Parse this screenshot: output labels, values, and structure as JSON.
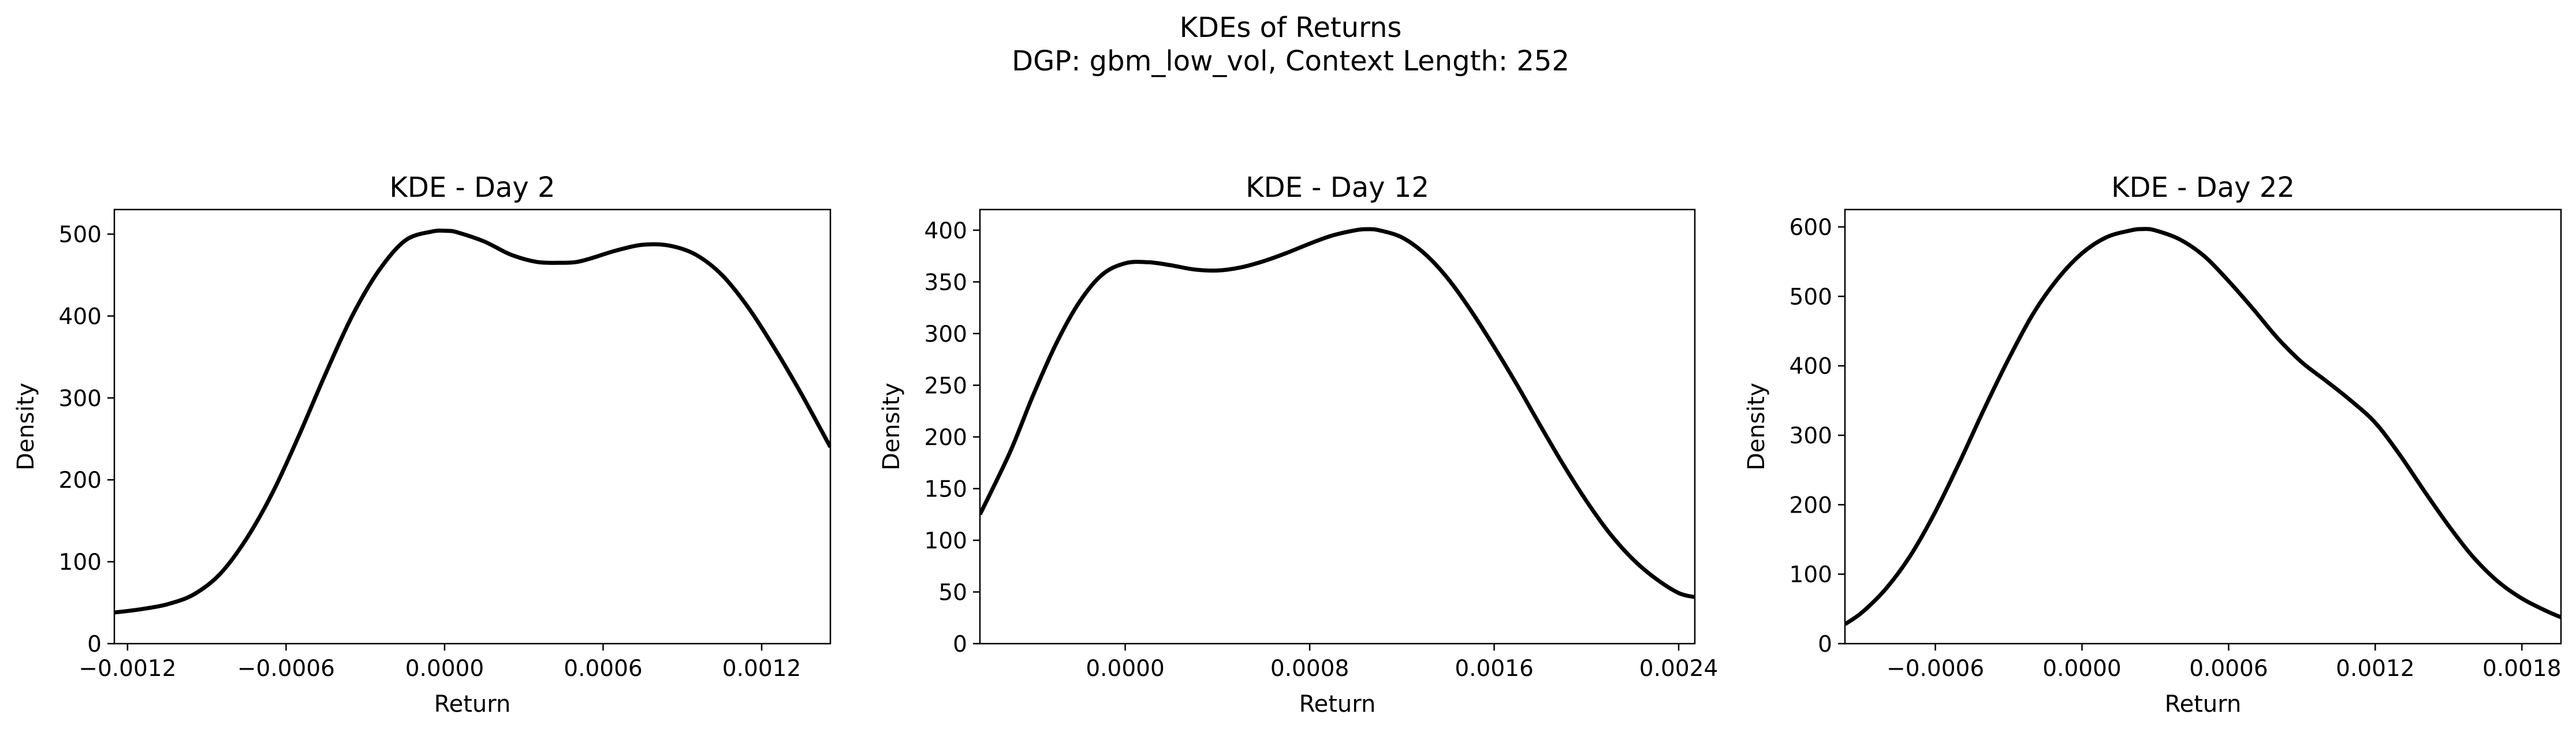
{
  "figure": {
    "title_line1": "KDEs of Returns",
    "title_line2": "DGP: gbm_low_vol, Context Length: 252"
  },
  "colors": {
    "line": "#000000",
    "axes": "#000000",
    "background": "#ffffff"
  },
  "chart_data": [
    {
      "type": "line",
      "title": "KDE - Day 2",
      "xlabel": "Return",
      "ylabel": "Density",
      "xlim": [
        -0.00125,
        0.00146
      ],
      "ylim": [
        0,
        530
      ],
      "xticks": [
        -0.0012,
        -0.0006,
        0.0,
        0.0006,
        0.0012
      ],
      "xtick_labels": [
        "−0.0012",
        "−0.0006",
        "0.0000",
        "0.0006",
        "0.0012"
      ],
      "yticks": [
        0,
        100,
        200,
        300,
        400,
        500
      ],
      "ytick_labels": [
        "0",
        "100",
        "200",
        "300",
        "400",
        "500"
      ],
      "grid": false,
      "series": [
        {
          "x": [
            -0.00125,
            -0.00115,
            -0.00105,
            -0.00095,
            -0.00085,
            -0.00075,
            -0.00065,
            -0.00055,
            -0.00045,
            -0.00035,
            -0.00025,
            -0.00015,
            -5e-05,
            1e-05,
            5e-05,
            0.00015,
            0.00025,
            0.00035,
            0.00045,
            0.0005,
            0.00055,
            0.00065,
            0.00075,
            0.00085,
            0.00095,
            0.00105,
            0.00115,
            0.00125,
            0.00135,
            0.00146
          ],
          "y": [
            38,
            42,
            48,
            60,
            85,
            128,
            185,
            255,
            330,
            400,
            455,
            492,
            503,
            504,
            502,
            491,
            475,
            466,
            465,
            466,
            470,
            480,
            487,
            486,
            475,
            450,
            410,
            360,
            305,
            240
          ]
        }
      ]
    },
    {
      "type": "line",
      "title": "KDE - Day 12",
      "xlabel": "Return",
      "ylabel": "Density",
      "xlim": [
        -0.00063,
        0.00247
      ],
      "ylim": [
        0,
        420
      ],
      "xticks": [
        0.0,
        0.0008,
        0.0016,
        0.0024
      ],
      "xtick_labels": [
        "0.0000",
        "0.0008",
        "0.0016",
        "0.0024"
      ],
      "yticks": [
        0,
        50,
        100,
        150,
        200,
        250,
        300,
        350,
        400
      ],
      "ytick_labels": [
        "0",
        "50",
        "100",
        "150",
        "200",
        "250",
        "300",
        "350",
        "400"
      ],
      "grid": false,
      "series": [
        {
          "x": [
            -0.00063,
            -0.0005,
            -0.0004,
            -0.0003,
            -0.0002,
            -0.0001,
            0.0,
            0.0001,
            0.0002,
            0.0003,
            0.0004,
            0.0005,
            0.0006,
            0.0007,
            0.0008,
            0.0009,
            0.001,
            0.00105,
            0.0011,
            0.0012,
            0.0013,
            0.0014,
            0.0015,
            0.0016,
            0.0017,
            0.0018,
            0.0019,
            0.002,
            0.0021,
            0.0022,
            0.0023,
            0.0024,
            0.00247
          ],
          "y": [
            125,
            185,
            240,
            290,
            330,
            357,
            368,
            369,
            366,
            362,
            361,
            364,
            370,
            378,
            387,
            395,
            400,
            401,
            400,
            393,
            377,
            353,
            322,
            287,
            250,
            211,
            173,
            138,
            107,
            82,
            63,
            49,
            45
          ]
        }
      ]
    },
    {
      "type": "line",
      "title": "KDE - Day 22",
      "xlabel": "Return",
      "ylabel": "Density",
      "xlim": [
        -0.00097,
        0.00196
      ],
      "ylim": [
        0,
        625
      ],
      "xticks": [
        -0.0006,
        0.0,
        0.0006,
        0.0012,
        0.0018
      ],
      "xtick_labels": [
        "−0.0006",
        "0.0000",
        "0.0006",
        "0.0012",
        "0.0018"
      ],
      "yticks": [
        0,
        100,
        200,
        300,
        400,
        500,
        600
      ],
      "ytick_labels": [
        "0",
        "100",
        "200",
        "300",
        "400",
        "500",
        "600"
      ],
      "grid": false,
      "series": [
        {
          "x": [
            -0.00097,
            -0.0009,
            -0.0008,
            -0.0007,
            -0.0006,
            -0.0005,
            -0.0004,
            -0.0003,
            -0.0002,
            -0.0001,
            0.0,
            0.0001,
            0.0002,
            0.00025,
            0.0003,
            0.0004,
            0.0005,
            0.0006,
            0.0007,
            0.0008,
            0.0009,
            0.001,
            0.0011,
            0.0012,
            0.0013,
            0.0014,
            0.0015,
            0.0016,
            0.0017,
            0.0018,
            0.0019,
            0.00196
          ],
          "y": [
            28,
            45,
            80,
            128,
            190,
            262,
            338,
            410,
            475,
            525,
            562,
            585,
            595,
            597,
            595,
            582,
            558,
            522,
            482,
            440,
            405,
            378,
            350,
            318,
            272,
            220,
            170,
            125,
            90,
            65,
            47,
            38
          ]
        }
      ]
    }
  ]
}
